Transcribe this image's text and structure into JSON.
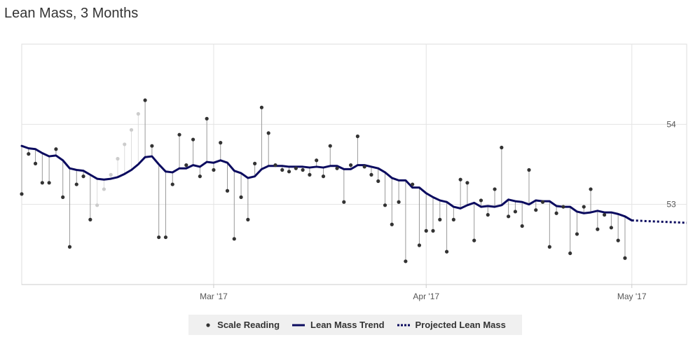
{
  "chart_data": {
    "type": "line",
    "title": "Lean Mass, 3 Months",
    "xlabel": "",
    "ylabel": "",
    "x_axis": {
      "type": "date",
      "range": [
        "2017-02-01",
        "2017-05-09"
      ],
      "tick_labels": [
        "Mar '17",
        "Apr '17",
        "May '17"
      ],
      "tick_dates": [
        "2017-03-01",
        "2017-04-01",
        "2017-05-01"
      ]
    },
    "y_axis": {
      "range": [
        52.0,
        55.0
      ],
      "ticks": [
        53,
        54
      ],
      "tick_position": "right"
    },
    "grid": true,
    "legend_position": "bottom-center",
    "colors": {
      "trend": "#0b0b5f",
      "reading": "#333333",
      "reading_faded": "#cccccc",
      "stem": "#999999"
    },
    "series": [
      {
        "name": "Scale Reading",
        "kind": "scatter",
        "points": [
          {
            "x": "2017-02-01",
            "y": 53.13
          },
          {
            "x": "2017-02-02",
            "y": 53.63
          },
          {
            "x": "2017-02-03",
            "y": 53.51
          },
          {
            "x": "2017-02-04",
            "y": 53.27
          },
          {
            "x": "2017-02-05",
            "y": 53.27
          },
          {
            "x": "2017-02-06",
            "y": 53.69
          },
          {
            "x": "2017-02-07",
            "y": 53.09
          },
          {
            "x": "2017-02-08",
            "y": 52.47
          },
          {
            "x": "2017-02-09",
            "y": 53.25
          },
          {
            "x": "2017-02-10",
            "y": 53.35
          },
          {
            "x": "2017-02-11",
            "y": 52.81
          },
          {
            "x": "2017-02-12",
            "y": 52.99,
            "faded": true
          },
          {
            "x": "2017-02-13",
            "y": 53.19,
            "faded": true
          },
          {
            "x": "2017-02-14",
            "y": 53.37,
            "faded": true
          },
          {
            "x": "2017-02-15",
            "y": 53.57,
            "faded": true
          },
          {
            "x": "2017-02-16",
            "y": 53.75,
            "faded": true
          },
          {
            "x": "2017-02-17",
            "y": 53.93,
            "faded": true
          },
          {
            "x": "2017-02-18",
            "y": 54.13,
            "faded": true
          },
          {
            "x": "2017-02-19",
            "y": 54.3
          },
          {
            "x": "2017-02-20",
            "y": 53.73
          },
          {
            "x": "2017-02-21",
            "y": 52.59
          },
          {
            "x": "2017-02-22",
            "y": 52.59
          },
          {
            "x": "2017-02-23",
            "y": 53.25
          },
          {
            "x": "2017-02-24",
            "y": 53.87
          },
          {
            "x": "2017-02-25",
            "y": 53.49
          },
          {
            "x": "2017-02-26",
            "y": 53.81
          },
          {
            "x": "2017-02-27",
            "y": 53.35
          },
          {
            "x": "2017-02-28",
            "y": 54.07
          },
          {
            "x": "2017-03-01",
            "y": 53.43
          },
          {
            "x": "2017-03-02",
            "y": 53.77
          },
          {
            "x": "2017-03-03",
            "y": 53.17
          },
          {
            "x": "2017-03-04",
            "y": 52.57
          },
          {
            "x": "2017-03-05",
            "y": 53.09
          },
          {
            "x": "2017-03-06",
            "y": 52.81
          },
          {
            "x": "2017-03-07",
            "y": 53.51
          },
          {
            "x": "2017-03-08",
            "y": 54.21
          },
          {
            "x": "2017-03-09",
            "y": 53.89
          },
          {
            "x": "2017-03-10",
            "y": 53.49
          },
          {
            "x": "2017-03-11",
            "y": 53.43
          },
          {
            "x": "2017-03-12",
            "y": 53.41
          },
          {
            "x": "2017-03-13",
            "y": 53.45
          },
          {
            "x": "2017-03-14",
            "y": 53.43
          },
          {
            "x": "2017-03-15",
            "y": 53.37
          },
          {
            "x": "2017-03-16",
            "y": 53.55
          },
          {
            "x": "2017-03-17",
            "y": 53.35
          },
          {
            "x": "2017-03-18",
            "y": 53.73
          },
          {
            "x": "2017-03-19",
            "y": 53.45
          },
          {
            "x": "2017-03-20",
            "y": 53.03
          },
          {
            "x": "2017-03-21",
            "y": 53.49
          },
          {
            "x": "2017-03-22",
            "y": 53.85
          },
          {
            "x": "2017-03-23",
            "y": 53.47
          },
          {
            "x": "2017-03-24",
            "y": 53.37
          },
          {
            "x": "2017-03-25",
            "y": 53.29
          },
          {
            "x": "2017-03-26",
            "y": 52.99
          },
          {
            "x": "2017-03-27",
            "y": 52.75
          },
          {
            "x": "2017-03-28",
            "y": 53.03
          },
          {
            "x": "2017-03-29",
            "y": 52.29
          },
          {
            "x": "2017-03-30",
            "y": 53.25
          },
          {
            "x": "2017-03-31",
            "y": 52.49
          },
          {
            "x": "2017-04-01",
            "y": 52.67
          },
          {
            "x": "2017-04-02",
            "y": 52.67
          },
          {
            "x": "2017-04-03",
            "y": 52.81
          },
          {
            "x": "2017-04-04",
            "y": 52.41
          },
          {
            "x": "2017-04-05",
            "y": 52.81
          },
          {
            "x": "2017-04-06",
            "y": 53.31
          },
          {
            "x": "2017-04-07",
            "y": 53.27
          },
          {
            "x": "2017-04-08",
            "y": 52.55
          },
          {
            "x": "2017-04-09",
            "y": 53.05
          },
          {
            "x": "2017-04-10",
            "y": 52.87
          },
          {
            "x": "2017-04-11",
            "y": 53.19
          },
          {
            "x": "2017-04-12",
            "y": 53.71
          },
          {
            "x": "2017-04-13",
            "y": 52.85
          },
          {
            "x": "2017-04-14",
            "y": 52.91
          },
          {
            "x": "2017-04-15",
            "y": 52.73
          },
          {
            "x": "2017-04-16",
            "y": 53.43
          },
          {
            "x": "2017-04-17",
            "y": 52.93
          },
          {
            "x": "2017-04-18",
            "y": 53.03
          },
          {
            "x": "2017-04-19",
            "y": 52.47
          },
          {
            "x": "2017-04-20",
            "y": 52.89
          },
          {
            "x": "2017-04-21",
            "y": 52.97
          },
          {
            "x": "2017-04-22",
            "y": 52.39
          },
          {
            "x": "2017-04-23",
            "y": 52.63
          },
          {
            "x": "2017-04-24",
            "y": 52.97
          },
          {
            "x": "2017-04-25",
            "y": 53.19
          },
          {
            "x": "2017-04-26",
            "y": 52.69
          },
          {
            "x": "2017-04-27",
            "y": 52.87
          },
          {
            "x": "2017-04-28",
            "y": 52.71
          },
          {
            "x": "2017-04-29",
            "y": 52.55
          },
          {
            "x": "2017-04-30",
            "y": 52.33
          }
        ]
      },
      {
        "name": "Lean Mass Trend",
        "kind": "line",
        "points": [
          {
            "x": "2017-02-01",
            "y": 53.73
          },
          {
            "x": "2017-02-02",
            "y": 53.7
          },
          {
            "x": "2017-02-03",
            "y": 53.69
          },
          {
            "x": "2017-02-04",
            "y": 53.64
          },
          {
            "x": "2017-02-05",
            "y": 53.6
          },
          {
            "x": "2017-02-06",
            "y": 53.61
          },
          {
            "x": "2017-02-07",
            "y": 53.55
          },
          {
            "x": "2017-02-08",
            "y": 53.45
          },
          {
            "x": "2017-02-09",
            "y": 53.43
          },
          {
            "x": "2017-02-10",
            "y": 53.42
          },
          {
            "x": "2017-02-11",
            "y": 53.37
          },
          {
            "x": "2017-02-12",
            "y": 53.32
          },
          {
            "x": "2017-02-13",
            "y": 53.31
          },
          {
            "x": "2017-02-14",
            "y": 53.32
          },
          {
            "x": "2017-02-15",
            "y": 53.34
          },
          {
            "x": "2017-02-16",
            "y": 53.38
          },
          {
            "x": "2017-02-17",
            "y": 53.43
          },
          {
            "x": "2017-02-18",
            "y": 53.5
          },
          {
            "x": "2017-02-19",
            "y": 53.59
          },
          {
            "x": "2017-02-20",
            "y": 53.6
          },
          {
            "x": "2017-02-21",
            "y": 53.5
          },
          {
            "x": "2017-02-22",
            "y": 53.41
          },
          {
            "x": "2017-02-23",
            "y": 53.4
          },
          {
            "x": "2017-02-24",
            "y": 53.45
          },
          {
            "x": "2017-02-25",
            "y": 53.45
          },
          {
            "x": "2017-02-26",
            "y": 53.49
          },
          {
            "x": "2017-02-27",
            "y": 53.47
          },
          {
            "x": "2017-02-28",
            "y": 53.53
          },
          {
            "x": "2017-03-01",
            "y": 53.52
          },
          {
            "x": "2017-03-02",
            "y": 53.55
          },
          {
            "x": "2017-03-03",
            "y": 53.52
          },
          {
            "x": "2017-03-04",
            "y": 53.42
          },
          {
            "x": "2017-03-05",
            "y": 53.39
          },
          {
            "x": "2017-03-06",
            "y": 53.33
          },
          {
            "x": "2017-03-07",
            "y": 53.35
          },
          {
            "x": "2017-03-08",
            "y": 53.44
          },
          {
            "x": "2017-03-09",
            "y": 53.48
          },
          {
            "x": "2017-03-10",
            "y": 53.48
          },
          {
            "x": "2017-03-11",
            "y": 53.48
          },
          {
            "x": "2017-03-12",
            "y": 53.47
          },
          {
            "x": "2017-03-13",
            "y": 53.47
          },
          {
            "x": "2017-03-14",
            "y": 53.47
          },
          {
            "x": "2017-03-15",
            "y": 53.46
          },
          {
            "x": "2017-03-16",
            "y": 53.47
          },
          {
            "x": "2017-03-17",
            "y": 53.46
          },
          {
            "x": "2017-03-18",
            "y": 53.48
          },
          {
            "x": "2017-03-19",
            "y": 53.48
          },
          {
            "x": "2017-03-20",
            "y": 53.44
          },
          {
            "x": "2017-03-21",
            "y": 53.44
          },
          {
            "x": "2017-03-22",
            "y": 53.49
          },
          {
            "x": "2017-03-23",
            "y": 53.49
          },
          {
            "x": "2017-03-24",
            "y": 53.47
          },
          {
            "x": "2017-03-25",
            "y": 53.45
          },
          {
            "x": "2017-03-26",
            "y": 53.4
          },
          {
            "x": "2017-03-27",
            "y": 53.33
          },
          {
            "x": "2017-03-28",
            "y": 53.3
          },
          {
            "x": "2017-03-29",
            "y": 53.3
          },
          {
            "x": "2017-03-30",
            "y": 53.21
          },
          {
            "x": "2017-03-31",
            "y": 53.21
          },
          {
            "x": "2017-04-01",
            "y": 53.14
          },
          {
            "x": "2017-04-02",
            "y": 53.09
          },
          {
            "x": "2017-04-03",
            "y": 53.05
          },
          {
            "x": "2017-04-04",
            "y": 53.03
          },
          {
            "x": "2017-04-05",
            "y": 52.97
          },
          {
            "x": "2017-04-06",
            "y": 52.95
          },
          {
            "x": "2017-04-07",
            "y": 52.99
          },
          {
            "x": "2017-04-08",
            "y": 53.02
          },
          {
            "x": "2017-04-09",
            "y": 52.97
          },
          {
            "x": "2017-04-10",
            "y": 52.98
          },
          {
            "x": "2017-04-11",
            "y": 52.97
          },
          {
            "x": "2017-04-12",
            "y": 52.99
          },
          {
            "x": "2017-04-13",
            "y": 53.06
          },
          {
            "x": "2017-04-14",
            "y": 53.04
          },
          {
            "x": "2017-04-15",
            "y": 53.03
          },
          {
            "x": "2017-04-16",
            "y": 53.0
          },
          {
            "x": "2017-04-17",
            "y": 53.05
          },
          {
            "x": "2017-04-18",
            "y": 53.04
          },
          {
            "x": "2017-04-19",
            "y": 53.04
          },
          {
            "x": "2017-04-20",
            "y": 52.98
          },
          {
            "x": "2017-04-21",
            "y": 52.97
          },
          {
            "x": "2017-04-22",
            "y": 52.97
          },
          {
            "x": "2017-04-23",
            "y": 52.91
          },
          {
            "x": "2017-04-24",
            "y": 52.89
          },
          {
            "x": "2017-04-25",
            "y": 52.9
          },
          {
            "x": "2017-04-26",
            "y": 52.92
          },
          {
            "x": "2017-04-27",
            "y": 52.9
          },
          {
            "x": "2017-04-28",
            "y": 52.9
          },
          {
            "x": "2017-04-29",
            "y": 52.88
          },
          {
            "x": "2017-04-30",
            "y": 52.85
          },
          {
            "x": "2017-05-01",
            "y": 52.8
          }
        ]
      },
      {
        "name": "Projected Lean Mass",
        "kind": "line",
        "dashed": true,
        "points": [
          {
            "x": "2017-05-01",
            "y": 52.8
          },
          {
            "x": "2017-05-09",
            "y": 52.77
          }
        ]
      }
    ]
  },
  "legend": {
    "items": [
      {
        "label": "Scale Reading",
        "symbol": "dot"
      },
      {
        "label": "Lean Mass Trend",
        "symbol": "line"
      },
      {
        "label": "Projected Lean Mass",
        "symbol": "dotted-line"
      }
    ]
  }
}
